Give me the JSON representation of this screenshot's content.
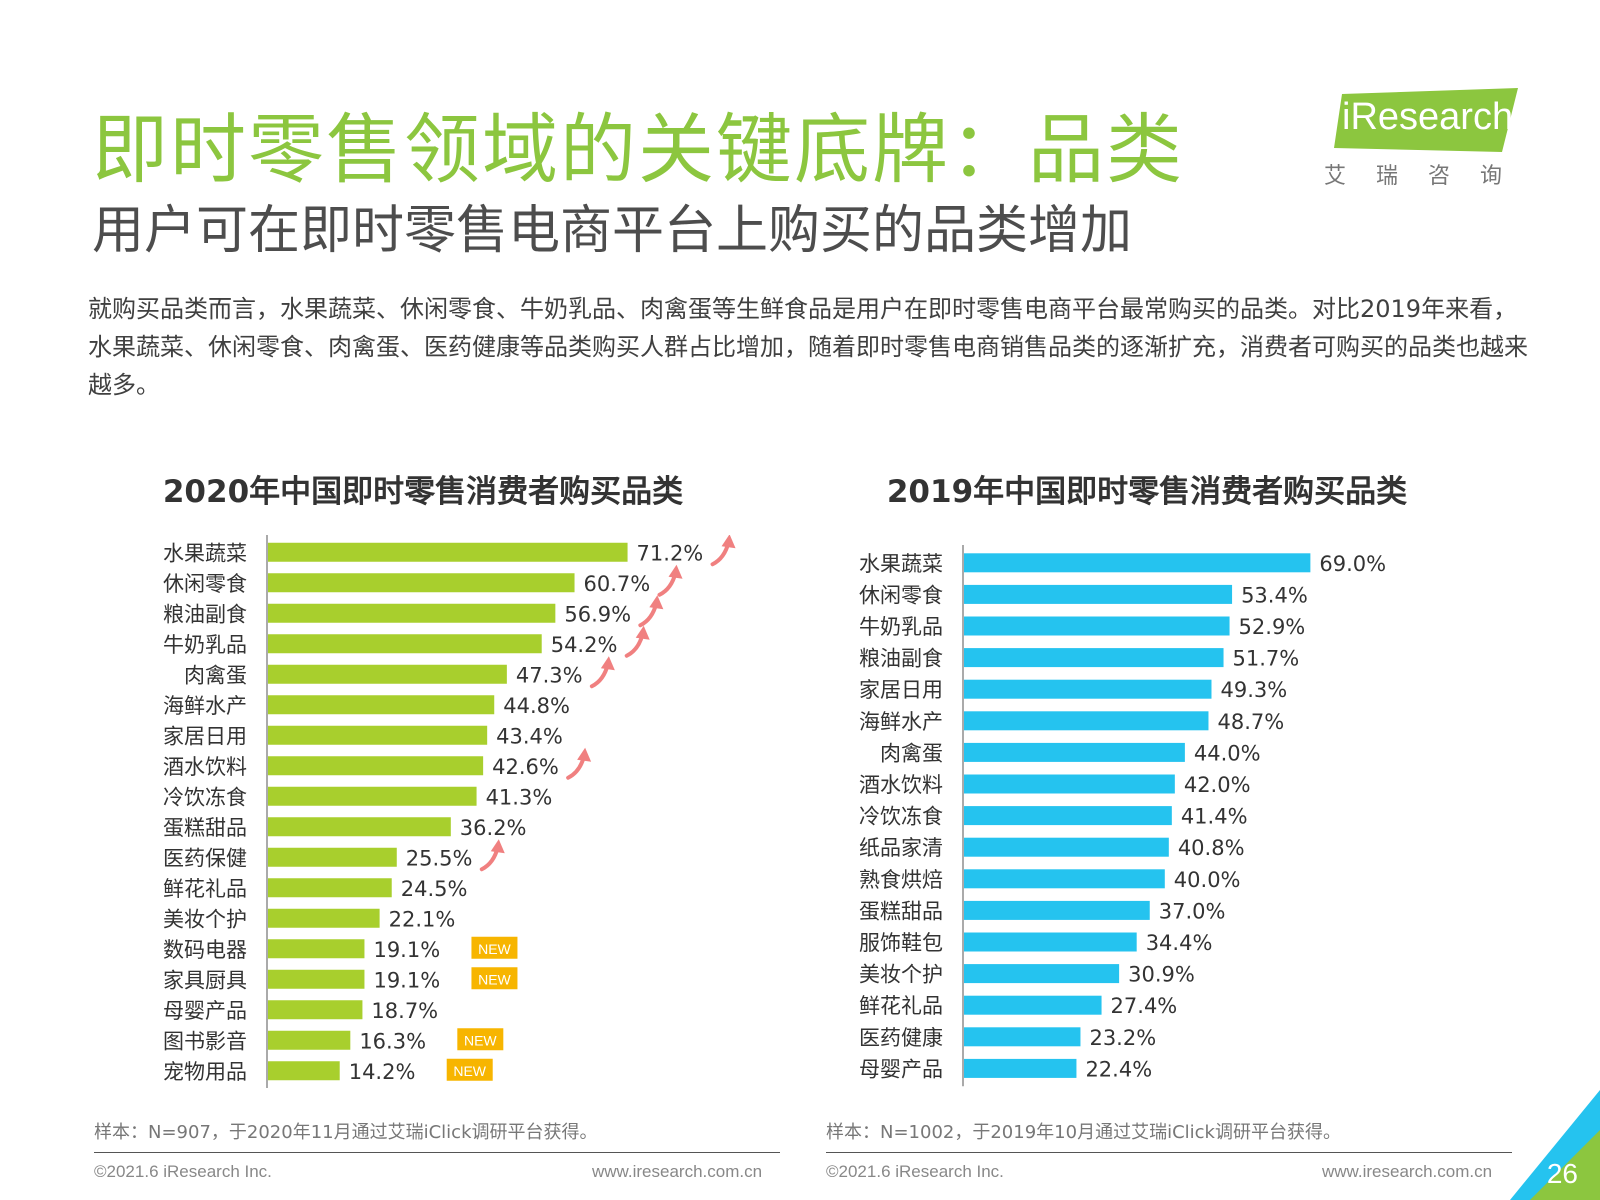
{
  "header": {
    "title": "即时零售领域的关键底牌：品类",
    "subtitle": "用户可在即时零售电商平台上购买的品类增加",
    "description": "就购买品类而言，水果蔬菜、休闲零食、牛奶乳品、肉禽蛋等生鲜食品是用户在即时零售电商平台最常购买的品类。对比2019年来看，水果蔬菜、休闲零食、肉禽蛋、医药健康等品类购买人群占比增加，随着即时零售电商销售品类的逐渐扩充，消费者可购买的品类也越来越多。"
  },
  "logo": {
    "text": "iResearch",
    "cn": "艾瑞咨询"
  },
  "colors": {
    "green_bar": "#a8cf2d",
    "blue_bar": "#25c3ef",
    "arrow": "#f08080",
    "new_badge": "#f7b500",
    "title_green": "#8cc63f"
  },
  "chart_data": [
    {
      "type": "bar",
      "orientation": "horizontal",
      "title": "2020年中国即时零售消费者购买品类",
      "categories": [
        "水果蔬菜",
        "休闲零食",
        "粮油副食",
        "牛奶乳品",
        "肉禽蛋",
        "海鲜水产",
        "家居日用",
        "酒水饮料",
        "冷饮冻食",
        "蛋糕甜品",
        "医药保健",
        "鲜花礼品",
        "美妆个护",
        "数码电器",
        "家具厨具",
        "母婴产品",
        "图书影音",
        "宠物用品"
      ],
      "values": [
        71.2,
        60.7,
        56.9,
        54.2,
        47.3,
        44.8,
        43.4,
        42.6,
        41.3,
        36.2,
        25.5,
        24.5,
        22.1,
        19.1,
        19.1,
        18.7,
        16.3,
        14.2
      ],
      "value_labels": [
        "71.2%",
        "60.7%",
        "56.9%",
        "54.2%",
        "47.3%",
        "44.8%",
        "43.4%",
        "42.6%",
        "41.3%",
        "36.2%",
        "25.5%",
        "24.5%",
        "22.1%",
        "19.1%",
        "19.1%",
        "18.7%",
        "16.3%",
        "14.2%"
      ],
      "increase_arrow": [
        true,
        true,
        true,
        true,
        true,
        false,
        false,
        true,
        false,
        false,
        true,
        false,
        false,
        false,
        false,
        false,
        false,
        false
      ],
      "new_badge": [
        false,
        false,
        false,
        false,
        false,
        false,
        false,
        false,
        false,
        false,
        false,
        false,
        false,
        true,
        true,
        false,
        true,
        true
      ],
      "badge_text": "NEW",
      "color": "#a8cf2d",
      "note": "样本：N=907，于2020年11月通过艾瑞iClick调研平台获得。"
    },
    {
      "type": "bar",
      "orientation": "horizontal",
      "title": "2019年中国即时零售消费者购买品类",
      "categories": [
        "水果蔬菜",
        "休闲零食",
        "牛奶乳品",
        "粮油副食",
        "家居日用",
        "海鲜水产",
        "肉禽蛋",
        "酒水饮料",
        "冷饮冻食",
        "纸品家清",
        "熟食烘焙",
        "蛋糕甜品",
        "服饰鞋包",
        "美妆个护",
        "鲜花礼品",
        "医药健康",
        "母婴产品"
      ],
      "values": [
        69.0,
        53.4,
        52.9,
        51.7,
        49.3,
        48.7,
        44.0,
        42.0,
        41.4,
        40.8,
        40.0,
        37.0,
        34.4,
        30.9,
        27.4,
        23.2,
        22.4
      ],
      "value_labels": [
        "69.0%",
        "53.4%",
        "52.9%",
        "51.7%",
        "49.3%",
        "48.7%",
        "44.0%",
        "42.0%",
        "41.4%",
        "40.8%",
        "40.0%",
        "37.0%",
        "34.4%",
        "30.9%",
        "27.4%",
        "23.2%",
        "22.4%"
      ],
      "color": "#25c3ef",
      "note": "样本：N=1002，于2019年10月通过艾瑞iClick调研平台获得。"
    }
  ],
  "footer": {
    "left": {
      "copyright": "©2021.6 iResearch Inc.",
      "url": "www.iresearch.com.cn"
    },
    "right": {
      "copyright": "©2021.6 iResearch Inc.",
      "url": "www.iresearch.com.cn"
    },
    "page_number": "26"
  }
}
